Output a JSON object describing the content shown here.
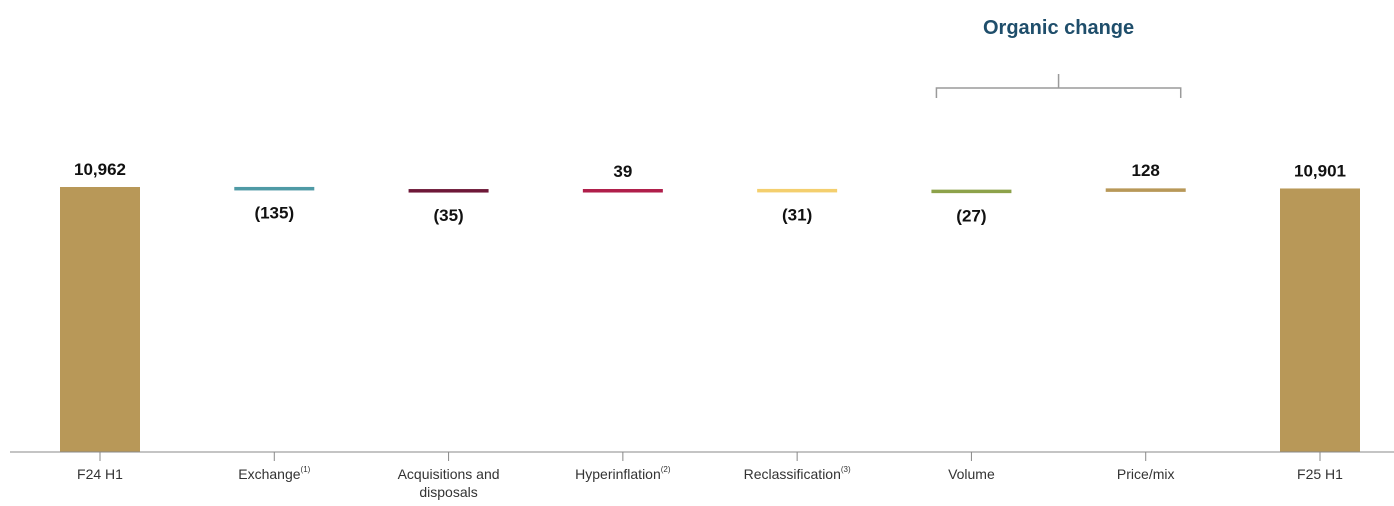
{
  "chart_data": {
    "type": "bar",
    "subtype": "waterfall",
    "categories": [
      {
        "label": "F24 H1",
        "superscript": ""
      },
      {
        "label": "Exchange",
        "superscript": "(1)"
      },
      {
        "label": "Acquisitions and disposals",
        "superscript": ""
      },
      {
        "label": "Hyperinflation",
        "superscript": "(2)"
      },
      {
        "label": "Reclassification",
        "superscript": "(3)"
      },
      {
        "label": "Volume",
        "superscript": ""
      },
      {
        "label": "Price/mix",
        "superscript": ""
      },
      {
        "label": "F25 H1",
        "superscript": ""
      }
    ],
    "values": [
      10962,
      -135,
      -35,
      39,
      -31,
      -27,
      128,
      10901
    ],
    "value_labels": [
      "10,962",
      "(135)",
      "(35)",
      "39",
      "(31)",
      "(27)",
      "128",
      "10,901"
    ],
    "kinds": [
      "total",
      "delta",
      "delta",
      "delta",
      "delta",
      "delta",
      "delta",
      "total"
    ],
    "colors": [
      "#b89858",
      "#4f9aa5",
      "#6e1838",
      "#b01e4a",
      "#f4cf6e",
      "#8da24a",
      "#b89858",
      "#b89858"
    ],
    "annotation": {
      "text": "Organic change",
      "spans_categories": [
        "Volume",
        "Price/mix"
      ],
      "color": "#1f4e6b"
    },
    "title": "",
    "xlabel": "",
    "ylabel": "",
    "grid": false,
    "legend": "none"
  }
}
